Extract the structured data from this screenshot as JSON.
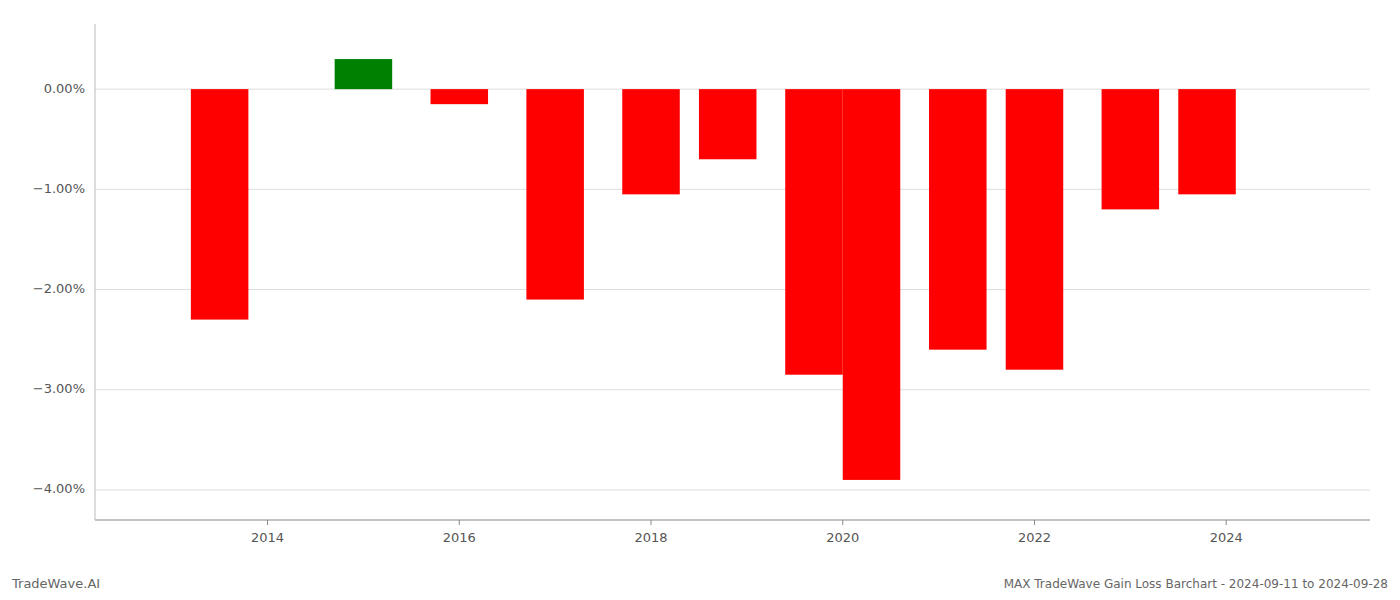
{
  "chart_data": {
    "type": "bar",
    "x": [
      2013.5,
      2015.0,
      2016.0,
      2017.0,
      2018.0,
      2018.8,
      2019.7,
      2020.3,
      2021.2,
      2022.0,
      2023.0,
      2023.8
    ],
    "values": [
      -2.3,
      0.3,
      -0.15,
      -2.1,
      -1.05,
      -0.7,
      -2.85,
      -3.9,
      -2.6,
      -2.8,
      -1.2,
      -1.05
    ],
    "colors": [
      "#ff0000",
      "#008000",
      "#ff0000",
      "#ff0000",
      "#ff0000",
      "#ff0000",
      "#ff0000",
      "#ff0000",
      "#ff0000",
      "#ff0000",
      "#ff0000",
      "#ff0000"
    ],
    "xlim": [
      2012.2,
      2025.5
    ],
    "ylim": [
      -4.3,
      0.65
    ],
    "xticks": [
      2014,
      2016,
      2018,
      2020,
      2022,
      2024
    ],
    "yticks": [
      {
        "value": 0.0,
        "label": "0.00%"
      },
      {
        "value": -1.0,
        "label": "−1.00%"
      },
      {
        "value": -2.0,
        "label": "−2.00%"
      },
      {
        "value": -3.0,
        "label": "−3.00%"
      },
      {
        "value": -4.0,
        "label": "−4.00%"
      }
    ],
    "grid": true,
    "annotations": [
      "TradeWave.AI",
      "MAX TradeWave Gain Loss Barchart - 2024-09-11 to 2024-09-28"
    ]
  }
}
